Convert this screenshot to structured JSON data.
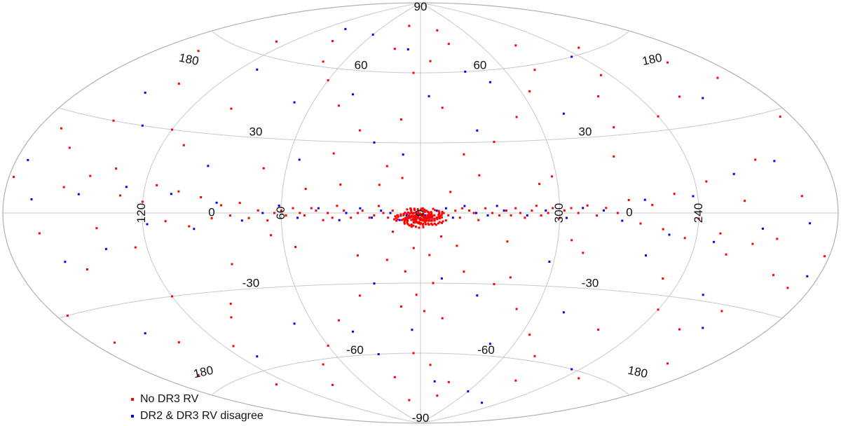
{
  "chart_data": {
    "type": "scatter",
    "projection": "aitoff (all-sky, galactic)",
    "title": "",
    "grid": true,
    "legend_position": "bottom-left",
    "colors": {
      "red": "#ff0000",
      "blue": "#0000ff",
      "grid": "#c8c8c8"
    },
    "latitude_tick_labels": [
      {
        "text": "90",
        "lon": 0,
        "lat": 88
      },
      {
        "text": "60",
        "lon": 45,
        "lat": 62
      },
      {
        "text": "60",
        "lon": -45,
        "lat": 62
      },
      {
        "text": "30",
        "lon": 80,
        "lat": 32
      },
      {
        "text": "30",
        "lon": -80,
        "lat": 32
      },
      {
        "text": "-30",
        "lon": 80,
        "lat": -28
      },
      {
        "text": "-30",
        "lon": -80,
        "lat": -28
      },
      {
        "text": "-60",
        "lon": 45,
        "lat": -58
      },
      {
        "text": "-60",
        "lon": -45,
        "lat": -58
      },
      {
        "text": "-90",
        "lon": 0,
        "lat": -88
      }
    ],
    "longitude_tick_labels": [
      {
        "text": "180",
        "lon": 155,
        "lat": 52,
        "rotate": 12
      },
      {
        "text": "180",
        "lon": -155,
        "lat": 52,
        "rotate": -12
      },
      {
        "text": "180",
        "lon": 155,
        "lat": -55,
        "rotate": -12
      },
      {
        "text": "180",
        "lon": -155,
        "lat": -55,
        "rotate": 12
      },
      {
        "text": "120",
        "lon": 120,
        "lat": 0,
        "rotate": -90
      },
      {
        "text": "60",
        "lon": 60,
        "lat": 0,
        "rotate": -90
      },
      {
        "text": "0",
        "lon": 0,
        "lat": 0,
        "rotate": -90
      },
      {
        "text": "300",
        "lon": -60,
        "lat": 0,
        "rotate": -90
      },
      {
        "text": "240",
        "lon": -120,
        "lat": 0,
        "rotate": -90
      },
      {
        "text": "0",
        "lon": 90,
        "lat": 0,
        "rotate": 0
      },
      {
        "text": "0",
        "lon": -90,
        "lat": 0,
        "rotate": 0
      }
    ],
    "series": [
      {
        "name": "No DR3 RV",
        "color": "#ff0000",
        "points": [
          [
            2,
            -1
          ],
          [
            -2,
            -2
          ],
          [
            4,
            -3
          ],
          [
            -3,
            -1
          ],
          [
            1,
            -4
          ],
          [
            -1,
            -3
          ],
          [
            3,
            -2
          ],
          [
            -4,
            -3
          ],
          [
            5,
            -1
          ],
          [
            -5,
            -2
          ],
          [
            0,
            -2
          ],
          [
            2,
            -3
          ],
          [
            -1,
            -1
          ],
          [
            6,
            -2
          ],
          [
            -6,
            -1
          ],
          [
            3,
            -4
          ],
          [
            -2,
            -4
          ],
          [
            1,
            1
          ],
          [
            -1,
            2
          ],
          [
            4,
            1
          ],
          [
            8,
            -3
          ],
          [
            -7,
            -2
          ],
          [
            10,
            -1
          ],
          [
            -10,
            0
          ],
          [
            12,
            1
          ],
          [
            -12,
            -1
          ],
          [
            14,
            -2
          ],
          [
            -15,
            1
          ],
          [
            16,
            0
          ],
          [
            -17,
            -2
          ],
          [
            18,
            3
          ],
          [
            -18,
            2
          ],
          [
            20,
            -1
          ],
          [
            -21,
            1
          ],
          [
            22,
            -2
          ],
          [
            -23,
            0
          ],
          [
            25,
            1
          ],
          [
            -25,
            -3
          ],
          [
            27,
            0
          ],
          [
            -28,
            2
          ],
          [
            30,
            -2
          ],
          [
            -31,
            0
          ],
          [
            33,
            1
          ],
          [
            -34,
            -1
          ],
          [
            36,
            3
          ],
          [
            -37,
            1
          ],
          [
            38,
            -2
          ],
          [
            -39,
            -1
          ],
          [
            40,
            0
          ],
          [
            -41,
            2
          ],
          [
            42,
            -3
          ],
          [
            -43,
            0
          ],
          [
            45,
            1
          ],
          [
            -45,
            -2
          ],
          [
            47,
            2
          ],
          [
            -48,
            1
          ],
          [
            50,
            -1
          ],
          [
            -50,
            3
          ],
          [
            52,
            0
          ],
          [
            -52,
            -1
          ],
          [
            55,
            2
          ],
          [
            -55,
            0
          ],
          [
            58,
            -1
          ],
          [
            -57,
            2
          ],
          [
            60,
            1
          ],
          [
            -60,
            -2
          ],
          [
            63,
            0
          ],
          [
            -62,
            1
          ],
          [
            66,
            -3
          ],
          [
            -65,
            2
          ],
          [
            70,
            1
          ],
          [
            -68,
            0
          ],
          [
            74,
            -2
          ],
          [
            -72,
            3
          ],
          [
            78,
            4
          ],
          [
            -76,
            -1
          ],
          [
            82,
            -1
          ],
          [
            -80,
            2
          ],
          [
            86,
            3
          ],
          [
            -85,
            0
          ],
          [
            90,
            -2
          ],
          [
            -90,
            5
          ],
          [
            95,
            6
          ],
          [
            -95,
            -4
          ],
          [
            100,
            -5
          ],
          [
            -100,
            3
          ],
          [
            105,
            8
          ],
          [
            -105,
            -6
          ],
          [
            110,
            -3
          ],
          [
            -110,
            7
          ],
          [
            115,
            10
          ],
          [
            -115,
            -9
          ],
          [
            120,
            4
          ],
          [
            -120,
            -2
          ],
          [
            125,
            -12
          ],
          [
            -125,
            11
          ],
          [
            130,
            6
          ],
          [
            -130,
            -7
          ],
          [
            135,
            15
          ],
          [
            -135,
            -14
          ],
          [
            140,
            -5
          ],
          [
            -140,
            4
          ],
          [
            145,
            12
          ],
          [
            -145,
            -10
          ],
          [
            150,
            -18
          ],
          [
            -150,
            17
          ],
          [
            155,
            8
          ],
          [
            -155,
            -8
          ],
          [
            160,
            20
          ],
          [
            -160,
            -19
          ],
          [
            165,
            -6
          ],
          [
            -165,
            5
          ],
          [
            170,
            25
          ],
          [
            -170,
            -22
          ],
          [
            175,
            -30
          ],
          [
            -175,
            28
          ],
          [
            15,
            20
          ],
          [
            -20,
            25
          ],
          [
            30,
            35
          ],
          [
            -35,
            30
          ],
          [
            45,
            45
          ],
          [
            -50,
            40
          ],
          [
            60,
            55
          ],
          [
            -65,
            50
          ],
          [
            75,
            62
          ],
          [
            -80,
            58
          ],
          [
            10,
            40
          ],
          [
            -12,
            45
          ],
          [
            5,
            60
          ],
          [
            -8,
            65
          ],
          [
            25,
            70
          ],
          [
            -30,
            72
          ],
          [
            100,
            40
          ],
          [
            -100,
            45
          ],
          [
            120,
            30
          ],
          [
            -120,
            35
          ],
          [
            140,
            45
          ],
          [
            -140,
            40
          ],
          [
            160,
            55
          ],
          [
            -160,
            50
          ],
          [
            90,
            70
          ],
          [
            -90,
            68
          ],
          [
            130,
            65
          ],
          [
            -130,
            62
          ],
          [
            20,
            80
          ],
          [
            -25,
            78
          ],
          [
            15,
            -20
          ],
          [
            -20,
            -25
          ],
          [
            30,
            -35
          ],
          [
            -35,
            -30
          ],
          [
            45,
            -45
          ],
          [
            -50,
            -40
          ],
          [
            60,
            -55
          ],
          [
            -65,
            -50
          ],
          [
            75,
            -62
          ],
          [
            -80,
            -58
          ],
          [
            10,
            -40
          ],
          [
            -12,
            -45
          ],
          [
            5,
            -60
          ],
          [
            -8,
            -65
          ],
          [
            25,
            -70
          ],
          [
            -30,
            -72
          ],
          [
            100,
            -40
          ],
          [
            -100,
            -45
          ],
          [
            120,
            -30
          ],
          [
            -120,
            -35
          ],
          [
            140,
            -45
          ],
          [
            -140,
            -40
          ],
          [
            160,
            -55
          ],
          [
            -160,
            -50
          ],
          [
            90,
            -70
          ],
          [
            -90,
            -68
          ],
          [
            130,
            -65
          ],
          [
            -130,
            -62
          ],
          [
            20,
            -80
          ],
          [
            -25,
            -78
          ],
          [
            35,
            12
          ],
          [
            -38,
            -12
          ],
          [
            55,
            -14
          ],
          [
            -58,
            15
          ],
          [
            70,
            18
          ],
          [
            -72,
            -16
          ],
          [
            85,
            -20
          ],
          [
            -88,
            22
          ],
          [
            110,
            25
          ],
          [
            -112,
            -24
          ],
          [
            3,
            -15
          ],
          [
            -4,
            -18
          ],
          [
            7,
            -25
          ],
          [
            -6,
            -30
          ],
          [
            2,
            -35
          ],
          [
            -2,
            -42
          ],
          [
            50,
            10
          ],
          [
            -52,
            12
          ],
          [
            65,
            -9
          ],
          [
            -66,
            -11
          ],
          [
            150,
            30
          ],
          [
            -150,
            -32
          ],
          [
            170,
            -40
          ],
          [
            -170,
            42
          ],
          [
            178,
            10
          ],
          [
            -178,
            -12
          ],
          [
            115,
            -50
          ],
          [
            -115,
            52
          ],
          [
            95,
            -35
          ],
          [
            -95,
            33
          ],
          [
            40,
            25
          ],
          [
            -42,
            -27
          ],
          [
            28,
            -18
          ],
          [
            -26,
            16
          ],
          [
            18,
            12
          ],
          [
            -16,
            -14
          ],
          [
            8,
            15
          ],
          [
            -9,
            -10
          ],
          [
            12,
            -8
          ],
          [
            -13,
            9
          ]
        ]
      },
      {
        "name": "DR2 & DR3 RV disagree",
        "color": "#0000ff",
        "points": [
          [
            1,
            -2
          ],
          [
            -2,
            -1
          ],
          [
            3,
            0
          ],
          [
            -4,
            -2
          ],
          [
            6,
            -1
          ],
          [
            -7,
            1
          ],
          [
            9,
            -3
          ],
          [
            -11,
            2
          ],
          [
            13,
            0
          ],
          [
            -14,
            -2
          ],
          [
            17,
            1
          ],
          [
            -19,
            3
          ],
          [
            21,
            -2
          ],
          [
            -24,
            0
          ],
          [
            26,
            2
          ],
          [
            -29,
            -1
          ],
          [
            32,
            0
          ],
          [
            -33,
            3
          ],
          [
            35,
            -3
          ],
          [
            -36,
            1
          ],
          [
            44,
            2
          ],
          [
            -46,
            -1
          ],
          [
            53,
            -2
          ],
          [
            -54,
            1
          ],
          [
            61,
            3
          ],
          [
            -63,
            -2
          ],
          [
            68,
            0
          ],
          [
            -70,
            2
          ],
          [
            77,
            -3
          ],
          [
            -79,
            1
          ],
          [
            88,
            4
          ],
          [
            -87,
            -3
          ],
          [
            98,
            -6
          ],
          [
            -97,
            5
          ],
          [
            108,
            7
          ],
          [
            -108,
            -8
          ],
          [
            118,
            -4
          ],
          [
            -118,
            6
          ],
          [
            128,
            9
          ],
          [
            -128,
            -10
          ],
          [
            138,
            -12
          ],
          [
            -138,
            13
          ],
          [
            148,
            6
          ],
          [
            -148,
            -5
          ],
          [
            158,
            -15
          ],
          [
            -158,
            16
          ],
          [
            168,
            4
          ],
          [
            -168,
            -3
          ],
          [
            22,
            30
          ],
          [
            -28,
            35
          ],
          [
            40,
            50
          ],
          [
            -45,
            55
          ],
          [
            70,
            45
          ],
          [
            -75,
            40
          ],
          [
            110,
            55
          ],
          [
            -115,
            60
          ],
          [
            150,
            40
          ],
          [
            -150,
            38
          ],
          [
            22,
            -30
          ],
          [
            -28,
            -35
          ],
          [
            40,
            -50
          ],
          [
            -45,
            -55
          ],
          [
            70,
            -45
          ],
          [
            -75,
            -40
          ],
          [
            110,
            -55
          ],
          [
            -115,
            -60
          ],
          [
            150,
            -40
          ],
          [
            -150,
            -38
          ],
          [
            8,
            25
          ],
          [
            -10,
            -28
          ],
          [
            55,
            22
          ],
          [
            -58,
            -20
          ],
          [
            95,
            18
          ],
          [
            -100,
            -16
          ],
          [
            135,
            30
          ],
          [
            -135,
            -28
          ],
          [
            175,
            15
          ],
          [
            -175,
            -18
          ],
          [
            12,
            70
          ],
          [
            -15,
            -72
          ],
          [
            60,
            75
          ],
          [
            -60,
            -75
          ],
          [
            100,
            75
          ],
          [
            -100,
            -78
          ],
          [
            5,
            -50
          ],
          [
            -5,
            50
          ],
          [
            30,
            -60
          ],
          [
            -32,
            60
          ]
        ]
      }
    ]
  },
  "legend": {
    "items": [
      {
        "label": "No DR3 RV",
        "color": "#ff0000"
      },
      {
        "label": "DR2 & DR3 RV disagree",
        "color": "#0000ff"
      }
    ]
  }
}
